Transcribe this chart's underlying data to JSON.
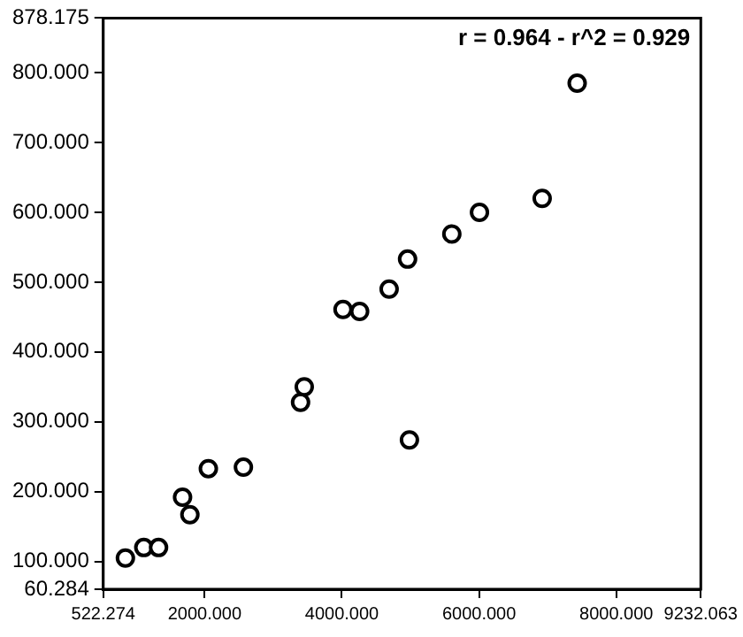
{
  "chart_data": {
    "type": "scatter",
    "annotations": [
      "r = 0.964 - r^2 = 0.929"
    ],
    "series": [
      {
        "color": "#000000",
        "x": [
          845,
          1113,
          1328,
          1678,
          1785,
          2054,
          2565,
          3398,
          3452,
          4017,
          4259,
          4689,
          4958,
          4985,
          5603,
          6006,
          6920,
          7430
        ],
        "values": [
          105,
          120,
          120,
          192,
          167,
          233,
          235,
          328,
          350,
          461,
          458,
          490,
          533,
          274,
          569,
          600,
          620,
          785
        ]
      }
    ],
    "xlim": [
      522.274,
      9232.063
    ],
    "xticks": [
      {
        "value": 522.274,
        "label": "522.274"
      },
      {
        "value": 2000,
        "label": "2000.000"
      },
      {
        "value": 4000,
        "label": "4000.000"
      },
      {
        "value": 6000,
        "label": "6000.000"
      },
      {
        "value": 8000,
        "label": "8000.000"
      },
      {
        "value": 9232.063,
        "label": "9232.063"
      }
    ],
    "ylim": [
      60.284,
      878.175
    ],
    "yticks": [
      {
        "value": 60.284,
        "label": "60.284"
      },
      {
        "value": 100,
        "label": "100.000"
      },
      {
        "value": 200,
        "label": "200.000"
      },
      {
        "value": 300,
        "label": "300.000"
      },
      {
        "value": 400,
        "label": "400.000"
      },
      {
        "value": 500,
        "label": "500.000"
      },
      {
        "value": 600,
        "label": "600.000"
      },
      {
        "value": 700,
        "label": "700.000"
      },
      {
        "value": 800,
        "label": "800.000"
      },
      {
        "value": 878.175,
        "label": "878.175"
      }
    ],
    "grid": false,
    "legend": false,
    "marker": "circle"
  }
}
